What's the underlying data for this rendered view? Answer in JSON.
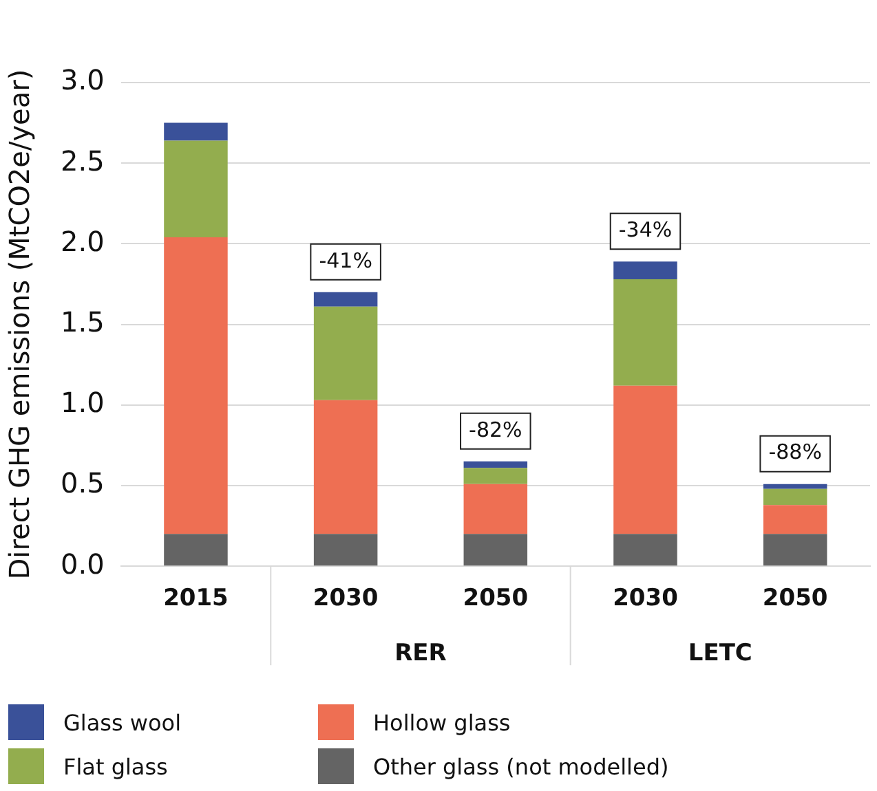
{
  "chart_data": {
    "type": "bar",
    "stacked": true,
    "ylabel": "Direct GHG emissions (MtCO2e/year)",
    "categories": [
      "2015",
      "2030",
      "2050",
      "2030",
      "2050"
    ],
    "series": [
      {
        "name": "Other glass (not modelled)",
        "color": "#646464",
        "values": [
          0.2,
          0.2,
          0.2,
          0.2,
          0.2
        ]
      },
      {
        "name": "Hollow glass",
        "color": "#ee6f53",
        "values": [
          1.84,
          0.83,
          0.31,
          0.92,
          0.18
        ]
      },
      {
        "name": "Flat glass",
        "color": "#93ad4e",
        "values": [
          0.6,
          0.58,
          0.1,
          0.66,
          0.1
        ]
      },
      {
        "name": "Glass wool",
        "color": "#3a5199",
        "values": [
          0.11,
          0.09,
          0.04,
          0.11,
          0.03
        ]
      }
    ],
    "ylim": [
      0,
      3
    ],
    "yticks": [
      {
        "value": 0,
        "label": "0.0"
      },
      {
        "value": 0.5,
        "label": "0.5"
      },
      {
        "value": 1,
        "label": "1.0"
      },
      {
        "value": 1.5,
        "label": "1.5"
      },
      {
        "value": 2,
        "label": "2.0"
      },
      {
        "value": 2.5,
        "label": "2.5"
      },
      {
        "value": 3,
        "label": "3.0"
      }
    ],
    "grid": "y",
    "legend": "bottom",
    "annotations": [
      {
        "text": "-41%",
        "y": 1.7
      },
      {
        "text": "-82%",
        "y": 0.65
      },
      {
        "text": "-34%",
        "y": 1.89
      },
      {
        "text": "-88%",
        "y": 0.51
      },
      "RER",
      "LETC"
    ]
  }
}
